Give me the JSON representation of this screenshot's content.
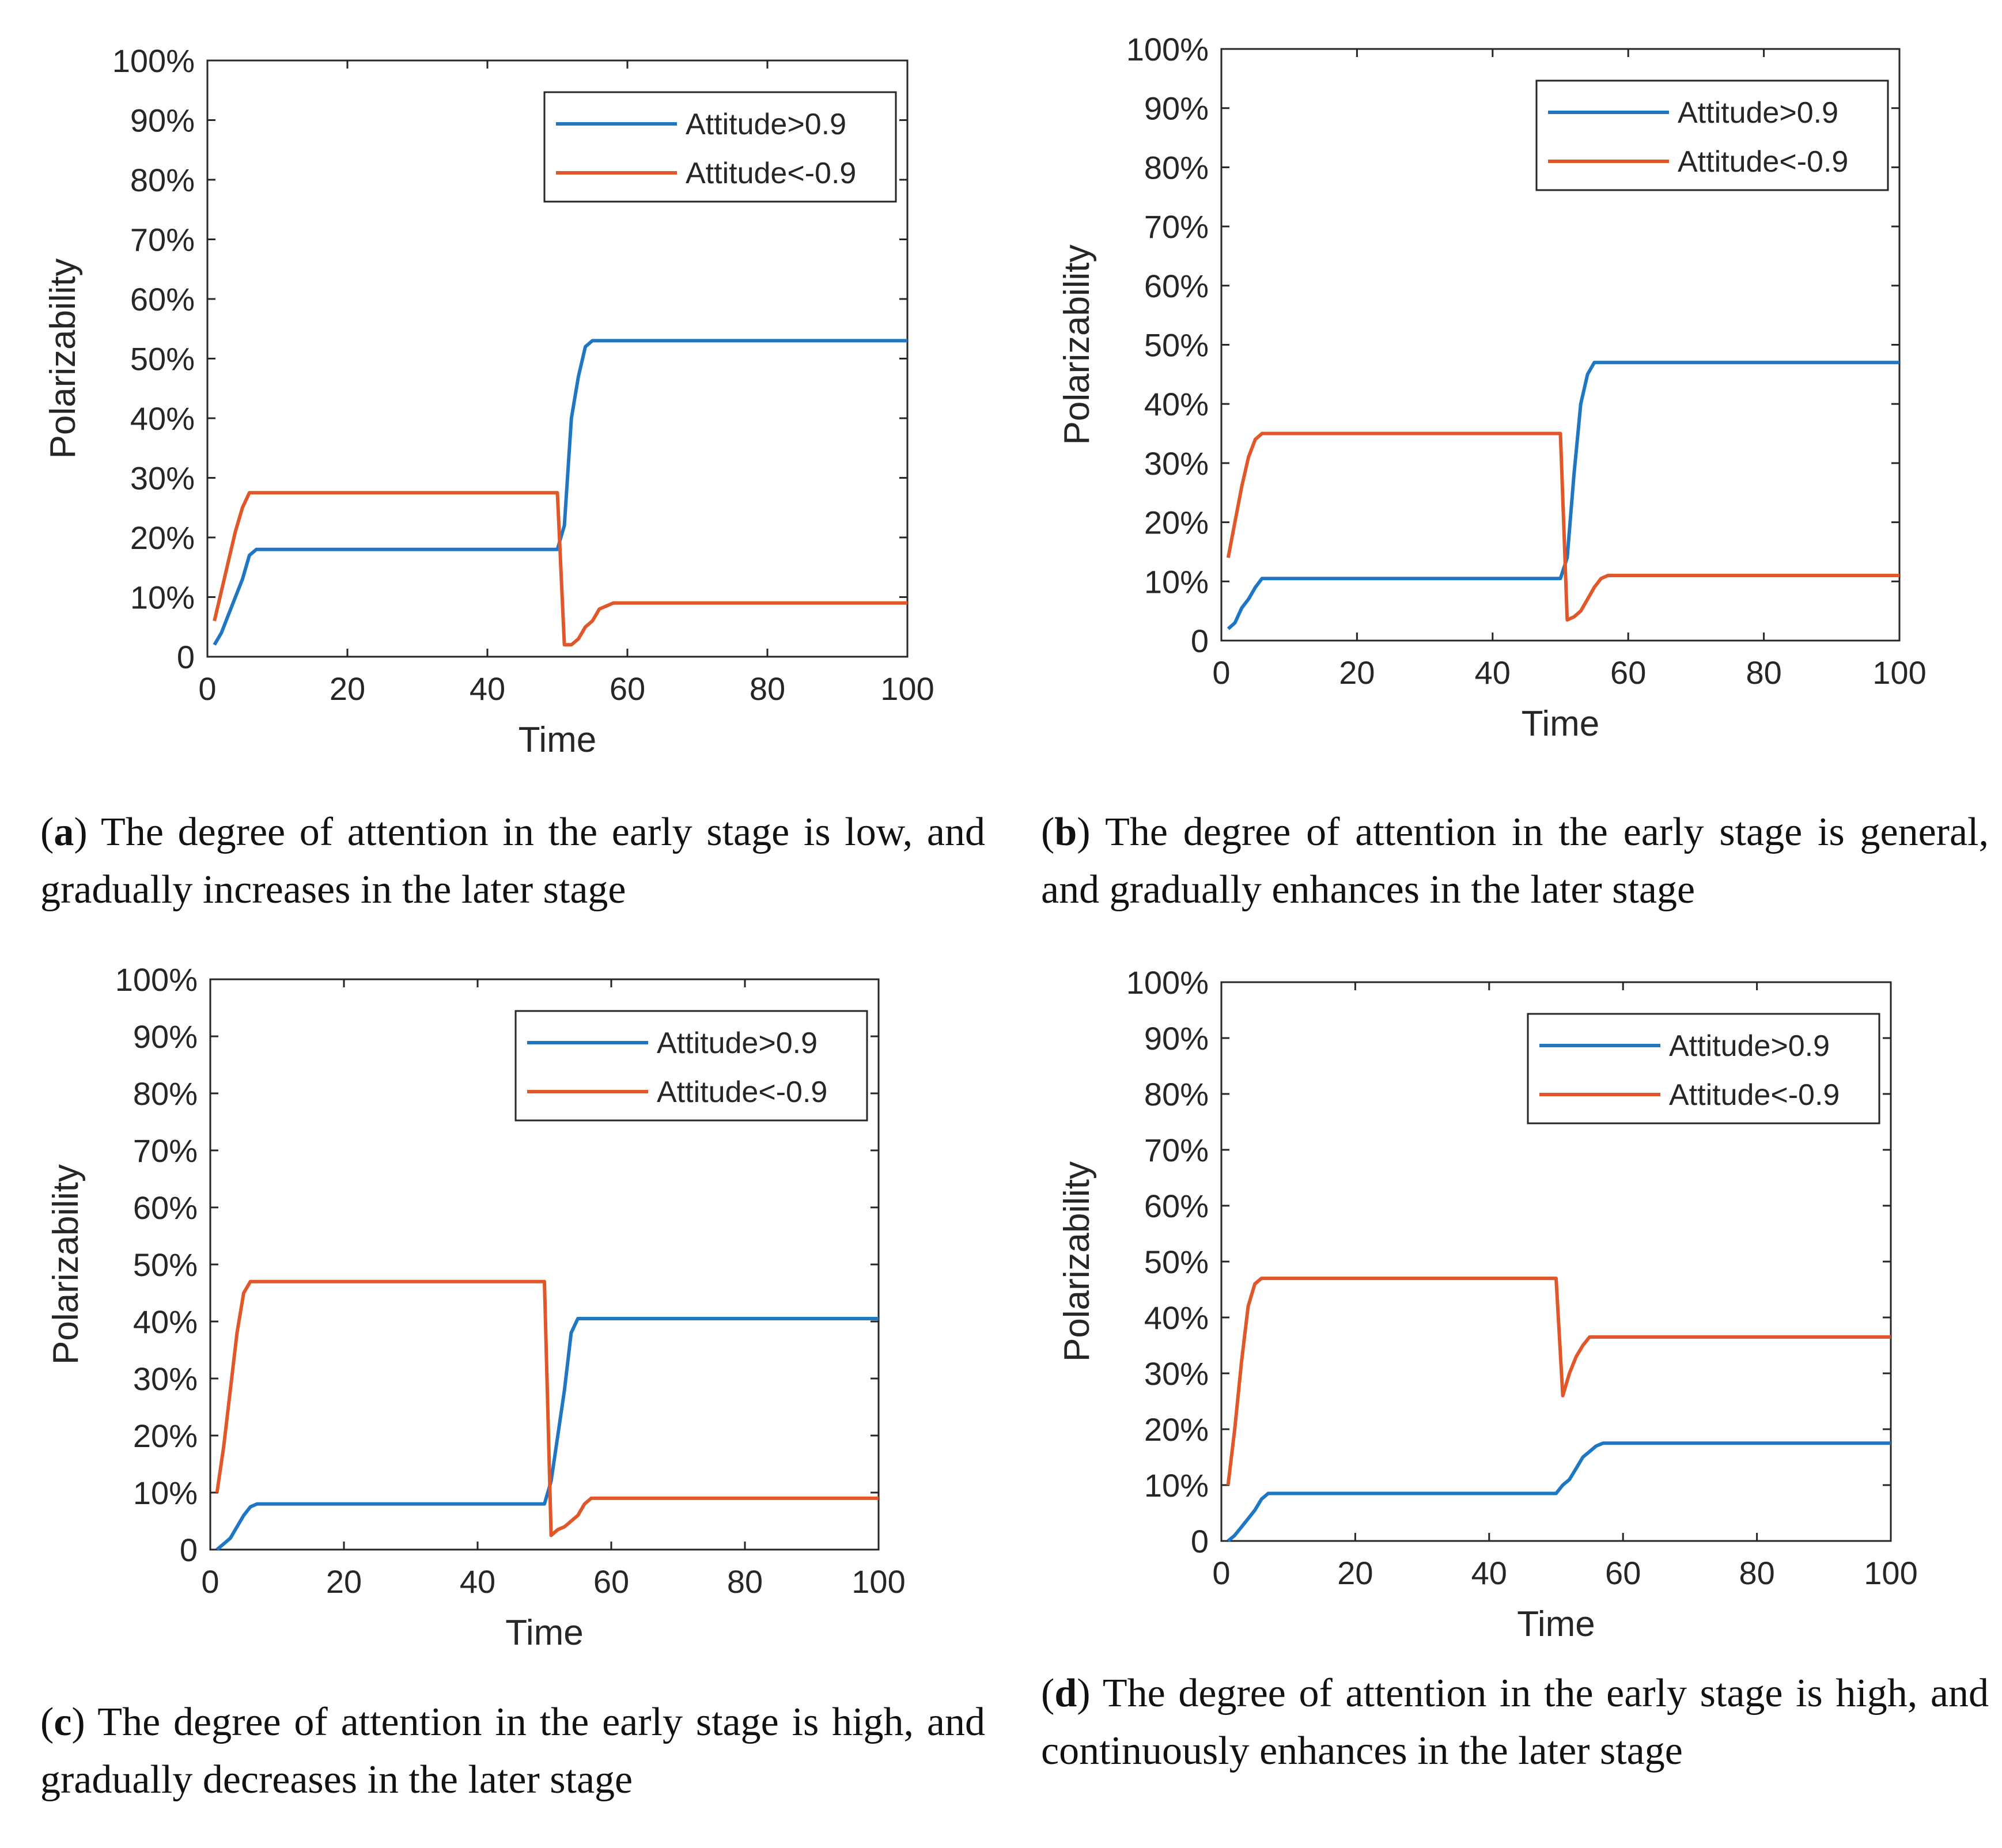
{
  "colors": {
    "blue": "#1f77c4",
    "orange": "#e0572a",
    "axis": "#262626"
  },
  "chart_data": [
    {
      "id": "a",
      "type": "line",
      "xlabel": "Time",
      "ylabel": "Polarizability",
      "xlim": [
        0,
        100
      ],
      "ylim": [
        0,
        100
      ],
      "xticks": [
        0,
        20,
        40,
        60,
        80,
        100
      ],
      "xtick_labels": [
        "0",
        "20",
        "40",
        "60",
        "80",
        "100"
      ],
      "yticks": [
        0,
        10,
        20,
        30,
        40,
        50,
        60,
        70,
        80,
        90,
        100
      ],
      "ytick_labels": [
        "0",
        "10%",
        "20%",
        "30%",
        "40%",
        "50%",
        "60%",
        "70%",
        "80%",
        "90%",
        "100%"
      ],
      "legend_position": "top-right",
      "series": [
        {
          "name": "Attitude>0.9",
          "color": "#1f77c4",
          "x": [
            1,
            2,
            3,
            4,
            5,
            6,
            7,
            50,
            51,
            52,
            53,
            54,
            55,
            56,
            100
          ],
          "y": [
            2,
            4,
            7,
            10,
            13,
            17,
            18,
            18,
            22,
            40,
            47,
            52,
            53,
            53,
            53
          ]
        },
        {
          "name": "Attitude<-0.9",
          "color": "#e0572a",
          "x": [
            1,
            2,
            3,
            4,
            5,
            6,
            50,
            51,
            52,
            53,
            54,
            55,
            56,
            57,
            58,
            100
          ],
          "y": [
            6,
            11,
            16,
            21,
            25,
            27.5,
            27.5,
            2,
            2,
            3,
            5,
            6,
            8,
            8.5,
            9,
            9
          ]
        }
      ],
      "caption": {
        "label": "a",
        "text": " The degree of attention in the early stage is low, and gradually increases in the later stage"
      }
    },
    {
      "id": "b",
      "type": "line",
      "xlabel": "Time",
      "ylabel": "Polarizability",
      "xlim": [
        0,
        100
      ],
      "ylim": [
        0,
        100
      ],
      "xticks": [
        0,
        20,
        40,
        60,
        80,
        100
      ],
      "xtick_labels": [
        "0",
        "20",
        "40",
        "60",
        "80",
        "100"
      ],
      "yticks": [
        0,
        10,
        20,
        30,
        40,
        50,
        60,
        70,
        80,
        90,
        100
      ],
      "ytick_labels": [
        "0",
        "10%",
        "20%",
        "30%",
        "40%",
        "50%",
        "60%",
        "70%",
        "80%",
        "90%",
        "100%"
      ],
      "legend_position": "top-right",
      "series": [
        {
          "name": "Attitude>0.9",
          "color": "#1f77c4",
          "x": [
            1,
            2,
            3,
            4,
            5,
            6,
            50,
            51,
            52,
            53,
            54,
            55,
            56,
            100
          ],
          "y": [
            2,
            3,
            5.5,
            7,
            9,
            10.5,
            10.5,
            14,
            28,
            40,
            45,
            47,
            47,
            47
          ]
        },
        {
          "name": "Attitude<-0.9",
          "color": "#e0572a",
          "x": [
            1,
            2,
            3,
            4,
            5,
            6,
            50,
            51,
            52,
            53,
            54,
            55,
            56,
            57,
            100
          ],
          "y": [
            14,
            20,
            26,
            31,
            34,
            35,
            35,
            3.5,
            4,
            5,
            7,
            9,
            10.5,
            11,
            11
          ]
        }
      ],
      "caption": {
        "label": "b",
        "text": " The degree of attention in the early stage is general, and gradually enhances in the later stage"
      }
    },
    {
      "id": "c",
      "type": "line",
      "xlabel": "Time",
      "ylabel": "Polarizability",
      "xlim": [
        0,
        100
      ],
      "ylim": [
        0,
        100
      ],
      "xticks": [
        0,
        20,
        40,
        60,
        80,
        100
      ],
      "xtick_labels": [
        "0",
        "20",
        "40",
        "60",
        "80",
        "100"
      ],
      "yticks": [
        0,
        10,
        20,
        30,
        40,
        50,
        60,
        70,
        80,
        90,
        100
      ],
      "ytick_labels": [
        "0",
        "10%",
        "20%",
        "30%",
        "40%",
        "50%",
        "60%",
        "70%",
        "80%",
        "90%",
        "100%"
      ],
      "legend_position": "top-right",
      "series": [
        {
          "name": "Attitude>0.9",
          "color": "#1f77c4",
          "x": [
            1,
            2,
            3,
            4,
            5,
            6,
            7,
            50,
            51,
            52,
            53,
            54,
            55,
            100
          ],
          "y": [
            0,
            1,
            2,
            4,
            6,
            7.5,
            8,
            8,
            12,
            20,
            28,
            38,
            40.5,
            40.5
          ]
        },
        {
          "name": "Attitude<-0.9",
          "color": "#e0572a",
          "x": [
            1,
            2,
            3,
            4,
            5,
            6,
            50,
            51,
            52,
            53,
            54,
            55,
            56,
            57,
            100
          ],
          "y": [
            10,
            18,
            28,
            38,
            45,
            47,
            47,
            2.5,
            3.5,
            4,
            5,
            6,
            8,
            9,
            9
          ]
        }
      ],
      "caption": {
        "label": "c",
        "text": " The degree of attention in the early stage is high, and gradually decreases in the later stage"
      }
    },
    {
      "id": "d",
      "type": "line",
      "xlabel": "Time",
      "ylabel": "Polarizability",
      "xlim": [
        0,
        100
      ],
      "ylim": [
        0,
        100
      ],
      "xticks": [
        0,
        20,
        40,
        60,
        80,
        100
      ],
      "xtick_labels": [
        "0",
        "20",
        "40",
        "60",
        "80",
        "100"
      ],
      "yticks": [
        0,
        10,
        20,
        30,
        40,
        50,
        60,
        70,
        80,
        90,
        100
      ],
      "ytick_labels": [
        "0",
        "10%",
        "20%",
        "30%",
        "40%",
        "50%",
        "60%",
        "70%",
        "80%",
        "90%",
        "100%"
      ],
      "legend_position": "top-right",
      "series": [
        {
          "name": "Attitude>0.9",
          "color": "#1f77c4",
          "x": [
            1,
            2,
            3,
            4,
            5,
            6,
            7,
            50,
            51,
            52,
            53,
            54,
            55,
            56,
            57,
            100
          ],
          "y": [
            0,
            1,
            2.5,
            4,
            5.5,
            7.5,
            8.5,
            8.5,
            10,
            11,
            13,
            15,
            16,
            17,
            17.5,
            17.5
          ]
        },
        {
          "name": "Attitude<-0.9",
          "color": "#e0572a",
          "x": [
            1,
            2,
            3,
            4,
            5,
            6,
            50,
            51,
            52,
            53,
            54,
            55,
            56,
            100
          ],
          "y": [
            10,
            20,
            32,
            42,
            46,
            47,
            47,
            26,
            30,
            33,
            35,
            36.5,
            36.5,
            36.5
          ]
        }
      ],
      "caption": {
        "label": "d",
        "text": " The degree of attention in the early stage is high, and continuously enhances in the later stage"
      }
    }
  ]
}
